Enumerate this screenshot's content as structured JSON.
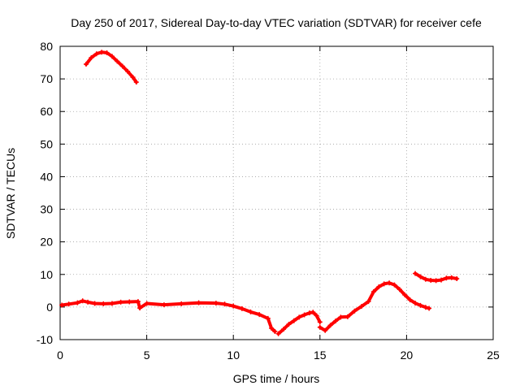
{
  "chart_data": {
    "type": "scatter",
    "title": "Day 250 of 2017, Sidereal Day-to-day VTEC variation (SDTVAR) for receiver cefe",
    "xlabel": "GPS time / hours",
    "ylabel": "SDTVAR / TECUs",
    "xlim": [
      0,
      25
    ],
    "ylim": [
      -10,
      80
    ],
    "xticks": [
      "0",
      "5",
      "10",
      "15",
      "20",
      "25"
    ],
    "yticks": [
      "-10",
      "0",
      "10",
      "20",
      "30",
      "40",
      "50",
      "60",
      "70",
      "80"
    ],
    "grid": true,
    "series": [
      {
        "name": "segment-1",
        "color": "#ff0000",
        "x": [
          1.5,
          1.8,
          2.1,
          2.4,
          2.7,
          3.0,
          3.3,
          3.6,
          3.9,
          4.2,
          4.4
        ],
        "y": [
          74.5,
          76.5,
          77.7,
          78.2,
          78.0,
          76.9,
          75.4,
          73.9,
          72.3,
          70.5,
          69.0
        ]
      },
      {
        "name": "segment-2",
        "color": "#ff0000",
        "x": [
          0.1,
          0.5,
          1.0,
          1.3,
          1.6,
          2.0,
          2.5,
          3.0,
          3.5,
          4.0,
          4.5,
          4.6,
          5.0,
          6.0,
          7.0,
          8.0,
          9.0,
          9.5,
          10.0,
          10.5,
          11.0,
          11.5,
          12.0,
          12.2,
          12.4
        ],
        "y": [
          0.6,
          0.9,
          1.3,
          1.9,
          1.5,
          1.1,
          1.0,
          1.1,
          1.5,
          1.6,
          1.7,
          -0.3,
          1.1,
          0.7,
          1.0,
          1.3,
          1.2,
          0.9,
          0.3,
          -0.5,
          -1.5,
          -2.3,
          -3.5,
          -6.5,
          -7.5
        ]
      },
      {
        "name": "segment-3",
        "color": "#ff0000",
        "x": [
          12.6,
          12.9,
          13.2,
          13.5,
          13.8,
          14.1,
          14.4,
          14.6,
          14.8,
          15.0
        ],
        "y": [
          -8.2,
          -6.8,
          -5.3,
          -4.2,
          -3.1,
          -2.4,
          -1.8,
          -1.6,
          -2.6,
          -4.6
        ]
      },
      {
        "name": "segment-4",
        "color": "#ff0000",
        "x": [
          15.0,
          15.3,
          15.6,
          15.9,
          16.2,
          16.6,
          17.0,
          17.4,
          17.8,
          18.1,
          18.4,
          18.7,
          19.0,
          19.3,
          19.6,
          19.9,
          20.2,
          20.5,
          20.8,
          21.1,
          21.3
        ],
        "y": [
          -6.2,
          -7.2,
          -5.6,
          -4.3,
          -3.1,
          -3.0,
          -1.2,
          0.2,
          1.7,
          4.7,
          6.2,
          7.1,
          7.4,
          6.8,
          5.4,
          3.7,
          2.2,
          1.2,
          0.5,
          -0.1,
          -0.4
        ]
      },
      {
        "name": "segment-5",
        "color": "#ff0000",
        "x": [
          20.5,
          20.8,
          21.1,
          21.4,
          21.7,
          22.0,
          22.3,
          22.6,
          22.9
        ],
        "y": [
          10.3,
          9.3,
          8.5,
          8.2,
          8.1,
          8.3,
          8.9,
          9.0,
          8.7
        ]
      }
    ]
  }
}
